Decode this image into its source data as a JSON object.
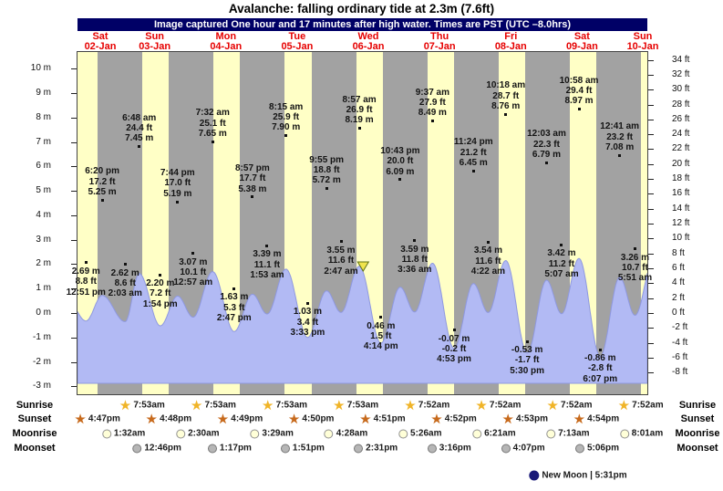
{
  "header": {
    "title": "Avalanche: falling  ordinary tide at 2.3m (7.6ft)",
    "subtitle": "Image captured One hour and 17 minutes after high water. Times are PST (UTC –8.0hrs)"
  },
  "days": [
    {
      "name": "Sat",
      "date": "02-Jan"
    },
    {
      "name": "Sun",
      "date": "03-Jan"
    },
    {
      "name": "Mon",
      "date": "04-Jan"
    },
    {
      "name": "Tue",
      "date": "05-Jan"
    },
    {
      "name": "Wed",
      "date": "06-Jan"
    },
    {
      "name": "Thu",
      "date": "07-Jan"
    },
    {
      "name": "Fri",
      "date": "08-Jan"
    },
    {
      "name": "Sat",
      "date": "09-Jan"
    },
    {
      "name": "Sun",
      "date": "10-Jan"
    }
  ],
  "axis": {
    "left_ticks": [
      "10 m",
      "9 m",
      "8 m",
      "7 m",
      "6 m",
      "5 m",
      "4 m",
      "3 m",
      "2 m",
      "1 m",
      "0 m",
      "-1 m",
      "-2 m",
      "-3 m"
    ],
    "right_ticks": [
      "34 ft",
      "32 ft",
      "30 ft",
      "28 ft",
      "26 ft",
      "24 ft",
      "22 ft",
      "20 ft",
      "18 ft",
      "16 ft",
      "14 ft",
      "12 ft",
      "10 ft",
      "8 ft",
      "6 ft",
      "4 ft",
      "2 ft",
      "0 ft",
      "-2 ft",
      "-4 ft",
      "-6 ft",
      "-8 ft"
    ]
  },
  "chart_data": {
    "type": "area",
    "title": "Avalanche: falling  ordinary tide at 2.3m (7.6ft)",
    "ylabel_left": "meters",
    "ylabel_right": "feet",
    "ylim_m": [
      -3,
      10
    ],
    "ylim_ft": [
      -8,
      34
    ],
    "tide_events": [
      {
        "day": 0,
        "type": "low",
        "time": "12:51 pm",
        "ft": "8.8 ft",
        "m": "2.69 m"
      },
      {
        "day": 0,
        "type": "high",
        "time": "6:20 pm",
        "ft": "17.2 ft",
        "m": "5.25 m"
      },
      {
        "day": 1,
        "type": "low",
        "time": "2:03 am",
        "ft": "8.6 ft",
        "m": "2.62 m"
      },
      {
        "day": 1,
        "type": "high",
        "time": "6:48 am",
        "ft": "24.4 ft",
        "m": "7.45 m"
      },
      {
        "day": 1,
        "type": "low",
        "time": "1:54 pm",
        "ft": "7.2 ft",
        "m": "2.20 m"
      },
      {
        "day": 1,
        "type": "high",
        "time": "7:44 pm",
        "ft": "17.0 ft",
        "m": "5.19 m"
      },
      {
        "day": 2,
        "type": "low",
        "time": "12:57 am",
        "ft": "10.1 ft",
        "m": "3.07 m"
      },
      {
        "day": 2,
        "type": "high",
        "time": "7:32 am",
        "ft": "25.1 ft",
        "m": "7.65 m"
      },
      {
        "day": 2,
        "type": "low",
        "time": "2:47 pm",
        "ft": "5.3 ft",
        "m": "1.63 m"
      },
      {
        "day": 2,
        "type": "high",
        "time": "8:57 pm",
        "ft": "17.7 ft",
        "m": "5.38 m"
      },
      {
        "day": 3,
        "type": "low",
        "time": "1:53 am",
        "ft": "11.1 ft",
        "m": "3.39 m"
      },
      {
        "day": 3,
        "type": "high",
        "time": "8:15 am",
        "ft": "25.9 ft",
        "m": "7.90 m"
      },
      {
        "day": 3,
        "type": "low",
        "time": "3:33 pm",
        "ft": "3.4 ft",
        "m": "1.03 m"
      },
      {
        "day": 3,
        "type": "high",
        "time": "9:55 pm",
        "ft": "18.8 ft",
        "m": "5.72 m"
      },
      {
        "day": 4,
        "type": "low",
        "time": "2:47 am",
        "ft": "11.6 ft",
        "m": "3.55 m"
      },
      {
        "day": 4,
        "type": "high",
        "time": "8:57 am",
        "ft": "26.9 ft",
        "m": "8.19 m"
      },
      {
        "day": 4,
        "type": "low",
        "time": "4:14 pm",
        "ft": "1.5 ft",
        "m": "0.46 m"
      },
      {
        "day": 4,
        "type": "high",
        "time": "10:43 pm",
        "ft": "20.0 ft",
        "m": "6.09 m"
      },
      {
        "day": 5,
        "type": "low",
        "time": "3:36 am",
        "ft": "11.8 ft",
        "m": "3.59 m"
      },
      {
        "day": 5,
        "type": "high",
        "time": "9:37 am",
        "ft": "27.9 ft",
        "m": "8.49 m"
      },
      {
        "day": 5,
        "type": "low",
        "time": "4:53 pm",
        "ft": "-0.2 ft",
        "m": "-0.07 m"
      },
      {
        "day": 5,
        "type": "high",
        "time": "11:24 pm",
        "ft": "21.2 ft",
        "m": "6.45 m"
      },
      {
        "day": 6,
        "type": "low",
        "time": "4:22 am",
        "ft": "11.6 ft",
        "m": "3.54 m"
      },
      {
        "day": 6,
        "type": "high",
        "time": "10:18 am",
        "ft": "28.7 ft",
        "m": "8.76 m"
      },
      {
        "day": 6,
        "type": "low",
        "time": "5:30 pm",
        "ft": "-1.7 ft",
        "m": "-0.53 m"
      },
      {
        "day": 7,
        "type": "high",
        "time": "12:03 am",
        "ft": "22.3 ft",
        "m": "6.79 m"
      },
      {
        "day": 7,
        "type": "low",
        "time": "5:07 am",
        "ft": "11.2 ft",
        "m": "3.42 m"
      },
      {
        "day": 7,
        "type": "high",
        "time": "10:58 am",
        "ft": "29.4 ft",
        "m": "8.97 m"
      },
      {
        "day": 7,
        "type": "low",
        "time": "6:07 pm",
        "ft": "-2.8 ft",
        "m": "-0.86 m"
      },
      {
        "day": 8,
        "type": "high",
        "time": "12:41 am",
        "ft": "23.2 ft",
        "m": "7.08 m"
      },
      {
        "day": 8,
        "type": "low",
        "time": "5:51 am",
        "ft": "10.7 ft",
        "m": "3.26 m"
      }
    ]
  },
  "astro": {
    "rows": [
      {
        "label": "Sunrise",
        "icon": "sunrise-star",
        "entries": [
          {
            "day": 1,
            "time": "7:53am"
          },
          {
            "day": 2,
            "time": "7:53am"
          },
          {
            "day": 3,
            "time": "7:53am"
          },
          {
            "day": 4,
            "time": "7:53am"
          },
          {
            "day": 5,
            "time": "7:52am"
          },
          {
            "day": 6,
            "time": "7:52am"
          },
          {
            "day": 7,
            "time": "7:52am"
          },
          {
            "day": 8,
            "time": "7:52am"
          }
        ]
      },
      {
        "label": "Sunset",
        "icon": "sunset-star",
        "entries": [
          {
            "day": 0,
            "time": "4:47pm"
          },
          {
            "day": 1,
            "time": "4:48pm"
          },
          {
            "day": 2,
            "time": "4:49pm"
          },
          {
            "day": 3,
            "time": "4:50pm"
          },
          {
            "day": 4,
            "time": "4:51pm"
          },
          {
            "day": 5,
            "time": "4:52pm"
          },
          {
            "day": 6,
            "time": "4:53pm"
          },
          {
            "day": 7,
            "time": "4:54pm"
          }
        ]
      },
      {
        "label": "Moonrise",
        "icon": "moonrise-circle",
        "entries": [
          {
            "day": 1,
            "time": "1:32am"
          },
          {
            "day": 2,
            "time": "2:30am"
          },
          {
            "day": 3,
            "time": "3:29am"
          },
          {
            "day": 4,
            "time": "4:28am"
          },
          {
            "day": 5,
            "time": "5:26am"
          },
          {
            "day": 6,
            "time": "6:21am"
          },
          {
            "day": 7,
            "time": "7:13am"
          },
          {
            "day": 8,
            "time": "8:01am"
          }
        ]
      },
      {
        "label": "Moonset",
        "icon": "moonset-circle",
        "entries": [
          {
            "day": 1,
            "time": "12:46pm"
          },
          {
            "day": 2,
            "time": "1:17pm"
          },
          {
            "day": 3,
            "time": "1:51pm"
          },
          {
            "day": 4,
            "time": "2:31pm"
          },
          {
            "day": 5,
            "time": "3:16pm"
          },
          {
            "day": 6,
            "time": "4:07pm"
          },
          {
            "day": 7,
            "time": "5:06pm"
          }
        ]
      }
    ],
    "new_moon": {
      "label": "New Moon",
      "time": "5:31pm"
    }
  },
  "colors": {
    "day_band": "#ffffc6",
    "night_band": "#a2a2a2",
    "tide_fill": "#b2baf4",
    "tide_stroke": "#8e98e0",
    "subtitle_bg": "#000066",
    "day_label": "#e60000",
    "sunrise_star": "#f0b428",
    "sunset_star": "#c76a1c",
    "moonrise_fill": "#ffffd8",
    "moonrise_border": "#909090",
    "moonset_fill": "#b6b6b6",
    "moonset_border": "#787878",
    "new_moon": "#181878",
    "marker_fill": "#f0e44c",
    "marker_stroke": "#5f7316"
  }
}
